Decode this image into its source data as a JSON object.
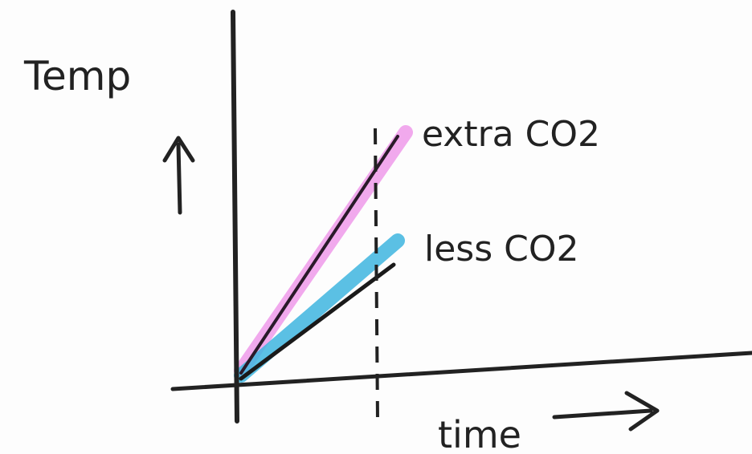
{
  "axes": {
    "y_label": "Temp",
    "x_label": "time"
  },
  "lines": [
    {
      "label": "extra CO2"
    },
    {
      "label": "less CO2"
    }
  ]
}
